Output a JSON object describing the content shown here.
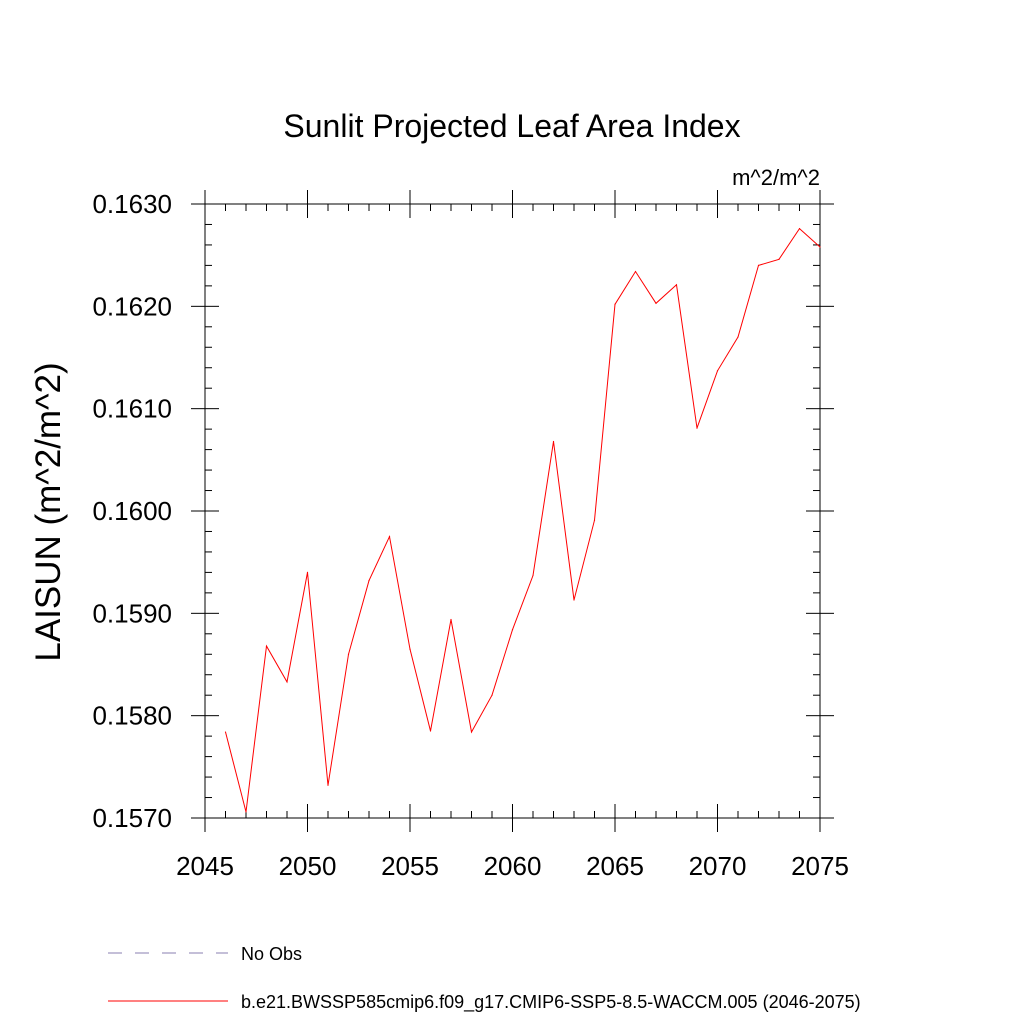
{
  "chart_data": {
    "type": "line",
    "title": "Sunlit Projected Leaf Area Index",
    "units": "m^2/m^2",
    "ylabel": "LAISUN  (m^2/m^2)",
    "xlabel": "",
    "xlim": [
      2045,
      2075
    ],
    "ylim": [
      0.157,
      0.163
    ],
    "x_ticks": [
      2045,
      2050,
      2055,
      2060,
      2065,
      2070,
      2075
    ],
    "x_tick_labels": [
      "2045",
      "2050",
      "2055",
      "2060",
      "2065",
      "2070",
      "2075"
    ],
    "y_ticks": [
      0.157,
      0.158,
      0.159,
      0.16,
      0.161,
      0.162,
      0.163
    ],
    "y_tick_labels": [
      "0.1570",
      "0.1580",
      "0.1590",
      "0.1600",
      "0.1610",
      "0.1620",
      "0.1630"
    ],
    "grid": false,
    "legend_position": "bottom",
    "series": [
      {
        "name": "No Obs",
        "color": "#8a7fb0",
        "dash": "dashed",
        "x": [],
        "y": []
      },
      {
        "name": "b.e21.BWSSP585cmip6.f09_g17.CMIP6-SSP5-8.5-WACCM.005 (2046-2075)",
        "color": "#ff0000",
        "dash": "solid",
        "x": [
          2046,
          2047,
          2048,
          2049,
          2050,
          2051,
          2052,
          2053,
          2054,
          2055,
          2056,
          2057,
          2058,
          2059,
          2060,
          2061,
          2062,
          2063,
          2064,
          2065,
          2066,
          2067,
          2068,
          2069,
          2070,
          2071,
          2072,
          2073,
          2074,
          2075
        ],
        "y": [
          0.15784,
          0.15706,
          0.15868,
          0.15833,
          0.1594,
          0.15732,
          0.1586,
          0.15932,
          0.15975,
          0.15865,
          0.15785,
          0.15894,
          0.15784,
          0.1582,
          0.15884,
          0.15937,
          0.16068,
          0.15913,
          0.15991,
          0.16202,
          0.16234,
          0.16203,
          0.16221,
          0.16081,
          0.16137,
          0.1617,
          0.1624,
          0.16246,
          0.16276,
          0.16258
        ]
      }
    ]
  }
}
